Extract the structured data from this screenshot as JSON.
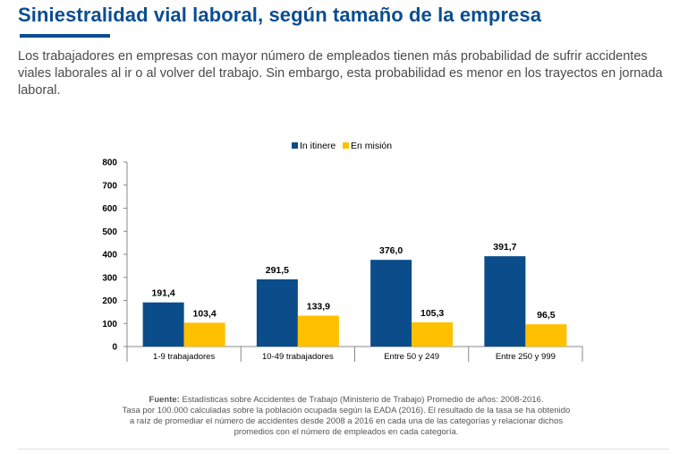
{
  "title": "Siniestralidad vial laboral, según tamaño de la empresa",
  "intro": "Los trabajadores en empresas con mayor número de empleados tienen más probabilidad de sufrir accidentes viales laborales al ir o al volver del trabajo. Sin embargo, esta probabilidad es menor en los trayectos en jornada laboral.",
  "colors": {
    "primary": "#0a4d91",
    "series1": "#0b4c8a",
    "series2": "#ffc000"
  },
  "chart_data": {
    "type": "bar",
    "categories": [
      "1-9 trabajadores",
      "10-49 trabajadores",
      "Entre 50 y 249",
      "Entre 250 y 999"
    ],
    "series": [
      {
        "name": "In itinere",
        "values": [
          191.4,
          291.5,
          376.0,
          391.7
        ],
        "labels": [
          "191,4",
          "291,5",
          "376,0",
          "391,7"
        ],
        "color": "#0b4c8a"
      },
      {
        "name": "En misión",
        "values": [
          103.4,
          133.9,
          105.3,
          96.5
        ],
        "labels": [
          "103,4",
          "133,9",
          "105,3",
          "96,5"
        ],
        "color": "#ffc000"
      }
    ],
    "ylim": [
      0,
      800
    ],
    "yticks": [
      0,
      100,
      200,
      300,
      400,
      500,
      600,
      700,
      800
    ],
    "legend_position": "top-center",
    "grid": false
  },
  "source": {
    "label": "Fuente:",
    "line1": "Estadísticas sobre Accidentes de Trabajo (Ministerio de Trabajo) Promedio de años: 2008-2016.",
    "line2": "Tasa por 100.000 calculadas sobre la población ocupada según la EADA (2016). El resultado de la tasa  se ha obtenido",
    "line3": "a raíz de promediar el número de accidentes desde 2008 a 2016 en cada una de las categorías y relacionar dichos",
    "line4": "promedios con el número de empleados en cada categoría."
  }
}
